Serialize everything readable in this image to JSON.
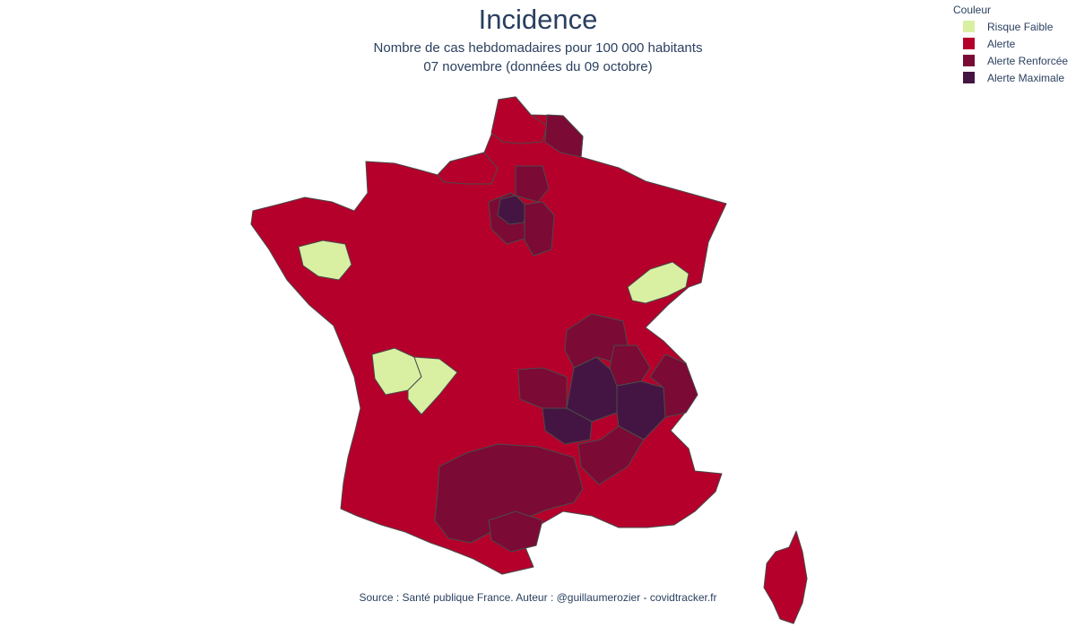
{
  "header": {
    "title": "Incidence",
    "subtitle_line1": "Nombre de cas hebdomadaires pour 100 000 habitants",
    "subtitle_line2": "07 novembre (données du 09 octobre)"
  },
  "legend": {
    "title": "Couleur",
    "items": [
      {
        "label": "Risque Faible",
        "color": "#d9f0a3"
      },
      {
        "label": "Alerte",
        "color": "#b5002b"
      },
      {
        "label": "Alerte Renforcée",
        "color": "#7b0a35"
      },
      {
        "label": "Alerte Maximale",
        "color": "#441542"
      }
    ]
  },
  "map": {
    "border_color": "#4a4a4a",
    "regions": [
      {
        "category": "Alerte"
      },
      {
        "category": "Alerte"
      },
      {
        "category": "Alerte Renforcée"
      },
      {
        "category": "Alerte Renforcée"
      },
      {
        "category": "Alerte Maximale"
      },
      {
        "category": "Alerte Renforcée"
      },
      {
        "category": "Alerte Renforcée"
      },
      {
        "category": "Alerte Maximale"
      },
      {
        "category": "Risque Faible"
      },
      {
        "category": "Risque Faible"
      },
      {
        "category": "Risque Faible"
      },
      {
        "category": "Risque Faible"
      },
      {
        "category": "Alerte Renforcée"
      },
      {
        "category": "Alerte Maximale"
      },
      {
        "category": "Alerte Maximale"
      },
      {
        "category": "Alerte Renforcée"
      },
      {
        "category": "Alerte Renforcée"
      },
      {
        "category": "Alerte Renforcée"
      },
      {
        "category": "Alerte Renforcée"
      },
      {
        "category": "Alerte Renforcée"
      },
      {
        "category": "Alerte Renforcée"
      },
      {
        "category": "Alerte"
      }
    ]
  },
  "footer": {
    "source": "Source : Santé publique France. Auteur : @guillaumerozier - covidtracker.fr"
  }
}
